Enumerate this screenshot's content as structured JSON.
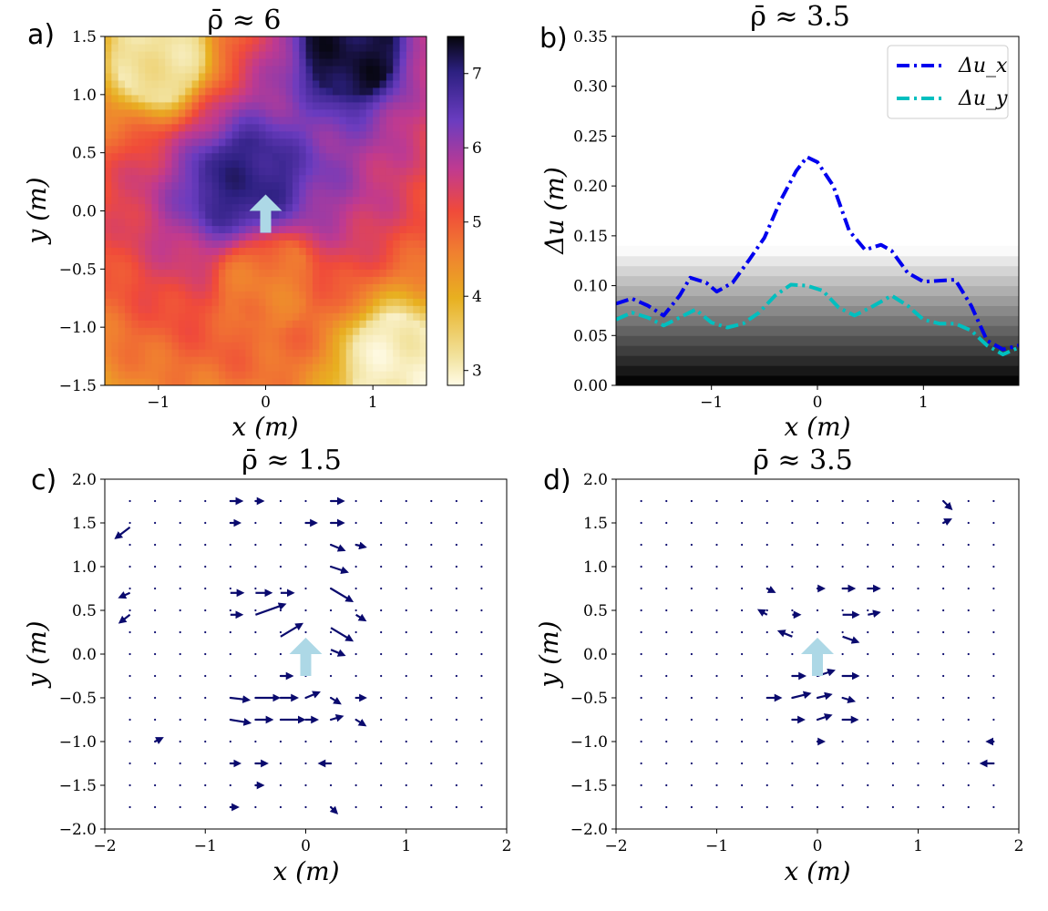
{
  "chart_data": [
    {
      "panel": "a)",
      "type": "heatmap",
      "title": "ρ̄ ≈ 6",
      "xlabel": "x (m)",
      "ylabel": "y (m)",
      "xlim": [
        -1.5,
        1.5
      ],
      "ylim": [
        -1.5,
        1.5
      ],
      "xticks": [
        "−1",
        "0",
        "1"
      ],
      "yticks": [
        "−1.5",
        "−1.0",
        "−0.5",
        "0.0",
        "0.5",
        "1.0",
        "1.5"
      ],
      "colorbar": {
        "range": [
          2.8,
          7.5
        ],
        "ticks": [
          "3",
          "4",
          "5",
          "6",
          "7"
        ],
        "colormap": "CMRmap_r"
      },
      "marker": {
        "type": "arrow",
        "direction": "up",
        "x": 0,
        "y": 0,
        "color": "#add8e6"
      },
      "field_description": [
        {
          "region": "center",
          "x": -0.2,
          "y": 0.2,
          "value": 7.0
        },
        {
          "region": "top-right",
          "x": 0.8,
          "y": 1.4,
          "value": 7.3
        },
        {
          "region": "top-left",
          "x": -1.0,
          "y": 1.35,
          "value": 3.2
        },
        {
          "region": "bottom-right",
          "x": 1.2,
          "y": -1.3,
          "value": 3.0
        },
        {
          "region": "bottom-center",
          "x": 0.0,
          "y": -0.6,
          "value": 4.6
        }
      ]
    },
    {
      "panel": "b)",
      "type": "line",
      "title": "ρ̄ ≈ 3.5",
      "xlabel": "x (m)",
      "ylabel": "Δu (m)",
      "xlim": [
        -1.9,
        1.9
      ],
      "ylim": [
        0,
        0.35
      ],
      "xticks": [
        "−1",
        "0",
        "1"
      ],
      "yticks": [
        "0.00",
        "0.05",
        "0.10",
        "0.15",
        "0.20",
        "0.25",
        "0.30",
        "0.35"
      ],
      "legend": {
        "placement": "top-right",
        "entries": [
          "Δu_x",
          "Δu_y"
        ]
      },
      "background": "grayscale horizontal bands from black at 0 to white near 0.14",
      "series": [
        {
          "name": "Δu_x",
          "color": "#0000ee",
          "style": "dashdot",
          "x": [
            -1.9,
            -1.75,
            -1.6,
            -1.45,
            -1.3,
            -1.2,
            -1.05,
            -0.95,
            -0.8,
            -0.65,
            -0.5,
            -0.35,
            -0.2,
            -0.1,
            0.0,
            0.15,
            0.3,
            0.45,
            0.6,
            0.7,
            0.85,
            1.0,
            1.15,
            1.3,
            1.45,
            1.6,
            1.75,
            1.9
          ],
          "y": [
            0.082,
            0.087,
            0.08,
            0.07,
            0.09,
            0.108,
            0.103,
            0.094,
            0.103,
            0.125,
            0.148,
            0.185,
            0.215,
            0.229,
            0.224,
            0.2,
            0.155,
            0.136,
            0.141,
            0.135,
            0.113,
            0.104,
            0.105,
            0.106,
            0.08,
            0.045,
            0.036,
            0.04
          ]
        },
        {
          "name": "Δu_y",
          "color": "#00bfbf",
          "style": "dashdot",
          "x": [
            -1.9,
            -1.75,
            -1.6,
            -1.45,
            -1.3,
            -1.15,
            -1.0,
            -0.85,
            -0.7,
            -0.55,
            -0.4,
            -0.25,
            -0.1,
            0.05,
            0.2,
            0.35,
            0.5,
            0.7,
            0.85,
            1.0,
            1.15,
            1.3,
            1.45,
            1.6,
            1.75,
            1.9
          ],
          "y": [
            0.066,
            0.073,
            0.068,
            0.06,
            0.068,
            0.076,
            0.063,
            0.058,
            0.062,
            0.073,
            0.09,
            0.101,
            0.1,
            0.095,
            0.078,
            0.07,
            0.078,
            0.09,
            0.08,
            0.066,
            0.062,
            0.062,
            0.055,
            0.04,
            0.031,
            0.038
          ]
        }
      ]
    },
    {
      "panel": "c)",
      "type": "scatter",
      "title": "ρ̄ ≈ 1.5",
      "xlabel": "x (m)",
      "ylabel": "y (m)",
      "xlim": [
        -2,
        2
      ],
      "ylim": [
        -2,
        2
      ],
      "xticks": [
        "−2",
        "−1",
        "0",
        "1",
        "2"
      ],
      "yticks": [
        "−2.0",
        "−1.5",
        "−1.0",
        "−0.5",
        "0.0",
        "0.5",
        "1.0",
        "1.5",
        "2.0"
      ],
      "marker": {
        "type": "arrow",
        "direction": "up",
        "x": 0,
        "y": 0,
        "color": "#add8e6"
      },
      "quiver_color": "#0a0a6e",
      "quiver": [
        [
          -1.75,
          1.45,
          -0.13,
          -0.1
        ],
        [
          -1.75,
          0.7,
          -0.09,
          -0.04
        ],
        [
          -1.75,
          0.45,
          -0.09,
          -0.07
        ],
        [
          -0.75,
          1.75,
          0.1,
          0
        ],
        [
          -0.5,
          1.75,
          0.06,
          0
        ],
        [
          0.25,
          1.75,
          0.11,
          0
        ],
        [
          -0.75,
          1.5,
          0.08,
          0
        ],
        [
          0.0,
          1.5,
          0.09,
          0
        ],
        [
          0.25,
          1.5,
          0.11,
          0
        ],
        [
          0.25,
          1.25,
          0.12,
          -0.05
        ],
        [
          0.5,
          1.25,
          0.08,
          -0.02
        ],
        [
          0.25,
          1.0,
          0.15,
          -0.05
        ],
        [
          -0.75,
          0.7,
          0.11,
          0
        ],
        [
          -0.5,
          0.7,
          0.14,
          0
        ],
        [
          -0.25,
          0.7,
          0.11,
          0
        ],
        [
          0.25,
          0.75,
          0.2,
          -0.12
        ],
        [
          0.5,
          0.45,
          0.08,
          -0.05
        ],
        [
          -0.75,
          0.45,
          0.1,
          0
        ],
        [
          -0.5,
          0.45,
          0.28,
          0.1
        ],
        [
          -0.25,
          0.2,
          0.2,
          0.12
        ],
        [
          0.25,
          0.3,
          0.2,
          -0.12
        ],
        [
          0.25,
          0.05,
          0.12,
          -0.05
        ],
        [
          -0.25,
          -0.25,
          0.1,
          0
        ],
        [
          -0.75,
          -0.5,
          0.17,
          -0.02
        ],
        [
          -0.5,
          -0.5,
          0.22,
          0
        ],
        [
          -0.25,
          -0.5,
          0.15,
          0
        ],
        [
          0.0,
          -0.5,
          0.12,
          0.05
        ],
        [
          0.25,
          -0.5,
          0.08,
          -0.05
        ],
        [
          0.5,
          -0.5,
          0.08,
          0
        ],
        [
          -0.75,
          -0.75,
          0.18,
          -0.03
        ],
        [
          -0.5,
          -0.75,
          0.15,
          0
        ],
        [
          -0.25,
          -0.75,
          0.22,
          0
        ],
        [
          0.0,
          -0.75,
          0.1,
          0
        ],
        [
          0.25,
          -0.75,
          0.1,
          0.03
        ],
        [
          0.5,
          -0.75,
          0.08,
          -0.05
        ],
        [
          -1.5,
          -1.0,
          0.06,
          0.03
        ],
        [
          -0.75,
          -1.25,
          0.08,
          0
        ],
        [
          -0.5,
          -1.25,
          0.1,
          0
        ],
        [
          0.25,
          -1.25,
          -0.1,
          0
        ],
        [
          -0.5,
          -1.5,
          0.06,
          0
        ],
        [
          -0.75,
          -1.75,
          0.06,
          0
        ],
        [
          0.25,
          -1.75,
          0.05,
          -0.05
        ]
      ]
    },
    {
      "panel": "d)",
      "type": "scatter",
      "title": "ρ̄ ≈ 3.5",
      "xlabel": "x (m)",
      "ylabel": "y (m)",
      "xlim": [
        -2,
        2
      ],
      "ylim": [
        -2,
        2
      ],
      "xticks": [
        "−2",
        "−1",
        "0",
        "1",
        "2"
      ],
      "yticks": [
        "−2.0",
        "−1.5",
        "−1.0",
        "−0.5",
        "0.0",
        "0.5",
        "1.0",
        "1.5",
        "2.0"
      ],
      "marker": {
        "type": "arrow",
        "direction": "up",
        "x": 0,
        "y": 0,
        "color": "#add8e6"
      },
      "quiver_color": "#0a0a6e",
      "quiver": [
        [
          1.25,
          1.75,
          0.07,
          -0.07
        ],
        [
          1.25,
          1.5,
          0.06,
          0.03
        ],
        [
          0.25,
          0.75,
          0.1,
          0
        ],
        [
          0.5,
          0.75,
          0.1,
          0
        ],
        [
          -0.5,
          0.75,
          0.06,
          -0.03
        ],
        [
          0.0,
          0.75,
          0.05,
          0
        ],
        [
          -0.5,
          0.45,
          -0.07,
          0.04
        ],
        [
          -0.25,
          0.45,
          0.06,
          0
        ],
        [
          0.25,
          0.45,
          0.14,
          0
        ],
        [
          0.5,
          0.45,
          0.1,
          0.02
        ],
        [
          -0.25,
          0.2,
          -0.12,
          0.05
        ],
        [
          0.25,
          0.2,
          0.14,
          -0.05
        ],
        [
          -0.25,
          -0.25,
          0.11,
          0
        ],
        [
          0.0,
          -0.25,
          0.15,
          0.05
        ],
        [
          0.25,
          -0.25,
          0.14,
          0
        ],
        [
          -0.5,
          -0.5,
          0.12,
          0
        ],
        [
          -0.25,
          -0.5,
          0.16,
          0.04
        ],
        [
          0.0,
          -0.5,
          0.12,
          0.03
        ],
        [
          0.25,
          -0.5,
          0.1,
          -0.03
        ],
        [
          -0.25,
          -0.75,
          0.1,
          0
        ],
        [
          0.0,
          -0.75,
          0.12,
          0.04
        ],
        [
          0.25,
          -0.75,
          0.13,
          0
        ],
        [
          1.75,
          -1.25,
          -0.11,
          0
        ],
        [
          1.75,
          -1.0,
          -0.05,
          0
        ],
        [
          0.0,
          -1.0,
          0.05,
          0
        ]
      ]
    }
  ]
}
